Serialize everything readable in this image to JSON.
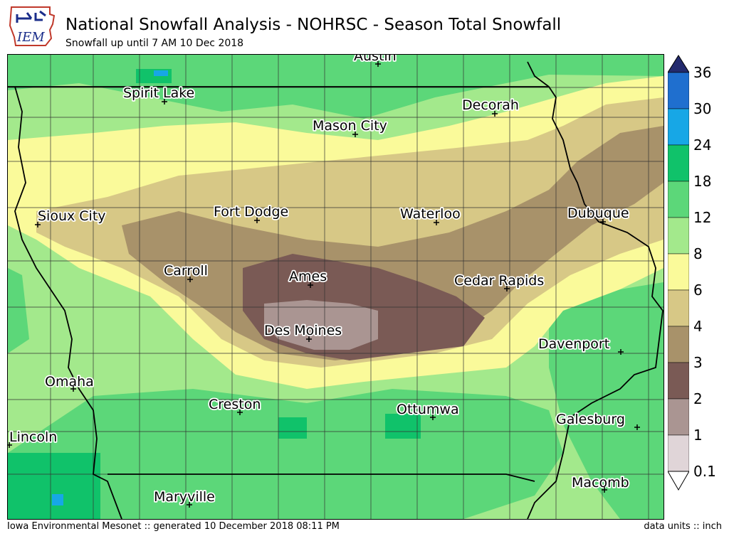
{
  "header": {
    "title": "National Snowfall Analysis - NOHRSC - Season Total Snowfall",
    "subtitle": "Snowfall up until 7 AM 10 Dec 2018",
    "logo_text": "IEM"
  },
  "footer": {
    "left": "Iowa Environmental Mesonet :: generated 10 December 2018 08:11 PM",
    "right": "data units :: inch"
  },
  "legend": {
    "labels": [
      "36",
      "30",
      "24",
      "18",
      "12",
      "8",
      "6",
      "4",
      "3",
      "2",
      "1",
      "0.1"
    ],
    "colors": [
      "#232a6d",
      "#1f6fcf",
      "#17a7e6",
      "#10c26a",
      "#5cd779",
      "#a3e98c",
      "#fafa9a",
      "#d7c886",
      "#a8926a",
      "#7a5a55",
      "#aa9592",
      "#e0d5d8"
    ]
  },
  "map": {
    "cities": [
      {
        "name": "Austin"
      },
      {
        "name": "Spirit Lake"
      },
      {
        "name": "Decorah"
      },
      {
        "name": "Mason City"
      },
      {
        "name": "Sioux City"
      },
      {
        "name": "Fort Dodge"
      },
      {
        "name": "Waterloo"
      },
      {
        "name": "Dubuque"
      },
      {
        "name": "Carroll"
      },
      {
        "name": "Ames"
      },
      {
        "name": "Cedar Rapids"
      },
      {
        "name": "Des Moines"
      },
      {
        "name": "Davenport"
      },
      {
        "name": "Omaha"
      },
      {
        "name": "Creston"
      },
      {
        "name": "Ottumwa"
      },
      {
        "name": "Galesburg"
      },
      {
        "name": "Lincoln"
      },
      {
        "name": "Macomb"
      },
      {
        "name": "Maryville"
      }
    ]
  }
}
